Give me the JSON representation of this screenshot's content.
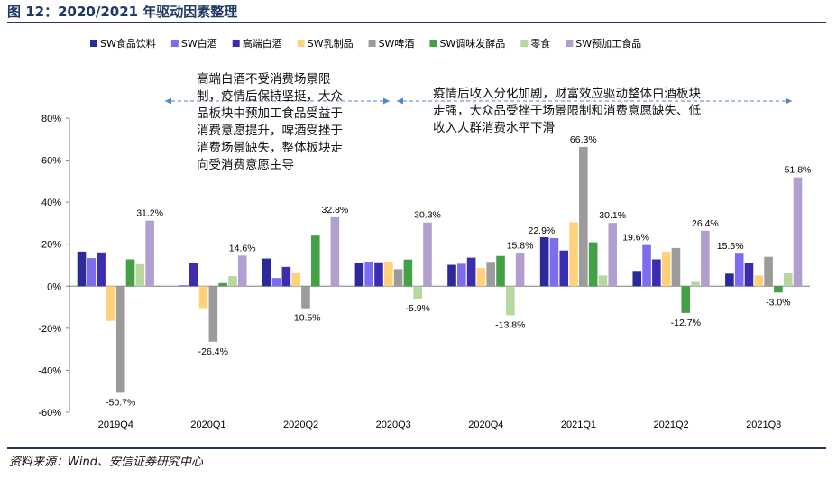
{
  "title": "图 12：2020/2021 年驱动因素整理",
  "source": "资料来源：Wind、安信证券研究中心",
  "annotations": [
    {
      "text": "高端白酒不受消费场景限制，疫情后保持坚挺，大众品板块中预加工食品受益于消费意愿提升，啤酒受挫于消费场景缺失，整体板块走向受消费意愿主导",
      "lines": [
        "高端白酒不受消费场景限",
        "制，疫情后保持坚挺，大众",
        "品板块中预加工食品受益于",
        "消费意愿提升，啤酒受挫于",
        "消费场景缺失，整体板块走",
        "向受消费意愿主导"
      ]
    },
    {
      "text": "疫情后收入分化加剧，财富效应驱动整体白酒板块走强，大众品受挫于场景限制和消费意愿缺失、低收入人群消费水平下滑",
      "lines": [
        "疫情后收入分化加剧，财富效应驱动整体白酒板块",
        "走强，大众品受挫于场景限制和消费意愿缺失、低",
        "收入人群消费水平下滑"
      ]
    }
  ],
  "chart_data": {
    "type": "bar",
    "categories": [
      "2019Q4",
      "2020Q1",
      "2020Q2",
      "2020Q3",
      "2020Q4",
      "2021Q1",
      "2021Q2",
      "2021Q3"
    ],
    "ylim": [
      -60,
      80
    ],
    "yticks": [
      -60,
      -40,
      -20,
      0,
      20,
      40,
      60,
      80
    ],
    "ytick_labels": [
      "-60%",
      "-40%",
      "-20%",
      "0%",
      "20%",
      "40%",
      "60%",
      "80%"
    ],
    "legend_position": "top",
    "grid": false,
    "series": [
      {
        "name": "SW食品饮料",
        "color": "#2a2a9a",
        "values": [
          16.5,
          0,
          13.2,
          11.3,
          10.2,
          23.3,
          7.3,
          6.0
        ]
      },
      {
        "name": "SW白酒",
        "color": "#7b6cf0",
        "values": [
          13.4,
          0.5,
          3.9,
          11.7,
          10.7,
          22.9,
          19.6,
          15.5
        ]
      },
      {
        "name": "高端白酒",
        "color": "#3a2db0",
        "values": [
          16.1,
          10.9,
          9.2,
          11.4,
          13.6,
          17.0,
          12.8,
          11.2
        ]
      },
      {
        "name": "SW乳制品",
        "color": "#ffd27a",
        "values": [
          -16.5,
          -10.4,
          6.2,
          11.7,
          8.7,
          30.4,
          16.4,
          5.1
        ]
      },
      {
        "name": "SW啤酒",
        "color": "#9b9b9b",
        "values": [
          -50.7,
          -26.4,
          -10.5,
          8.1,
          11.6,
          66.3,
          18.2,
          14.0
        ]
      },
      {
        "name": "SW调味发酵品",
        "color": "#44a046",
        "values": [
          12.8,
          1.5,
          24.1,
          12.7,
          14.4,
          20.9,
          -12.7,
          -3.0
        ]
      },
      {
        "name": "零食",
        "color": "#b6d89c",
        "values": [
          10.5,
          4.8,
          0,
          -5.9,
          -13.8,
          5.1,
          2.1,
          6.1
        ]
      },
      {
        "name": "SW预加工食品",
        "color": "#b29fcf",
        "values": [
          31.2,
          14.6,
          32.8,
          30.3,
          15.8,
          30.1,
          26.4,
          51.8
        ]
      }
    ],
    "data_labels": [
      {
        "series": "SW预加工食品",
        "category": "2019Q4",
        "value": 31.2,
        "text": "31.2%"
      },
      {
        "series": "SW啤酒",
        "category": "2019Q4",
        "value": -50.7,
        "text": "-50.7%"
      },
      {
        "series": "SW预加工食品",
        "category": "2020Q1",
        "value": 14.6,
        "text": "14.6%"
      },
      {
        "series": "SW啤酒",
        "category": "2020Q1",
        "value": -26.4,
        "text": "-26.4%"
      },
      {
        "series": "SW预加工食品",
        "category": "2020Q2",
        "value": 32.8,
        "text": "32.8%"
      },
      {
        "series": "SW啤酒",
        "category": "2020Q2",
        "value": -10.5,
        "text": "-10.5%"
      },
      {
        "series": "SW预加工食品",
        "category": "2020Q3",
        "value": 30.3,
        "text": "30.3%"
      },
      {
        "series": "零食",
        "category": "2020Q3",
        "value": -5.9,
        "text": "-5.9%"
      },
      {
        "series": "SW预加工食品",
        "category": "2020Q4",
        "value": 15.8,
        "text": "15.8%"
      },
      {
        "series": "零食",
        "category": "2020Q4",
        "value": -13.8,
        "text": "-13.8%"
      },
      {
        "series": "SW白酒",
        "category": "2021Q1",
        "value": 22.9,
        "text": "22.9%"
      },
      {
        "series": "SW啤酒",
        "category": "2021Q1",
        "value": 66.3,
        "text": "66.3%"
      },
      {
        "series": "SW预加工食品",
        "category": "2021Q1",
        "value": 30.1,
        "text": "30.1%"
      },
      {
        "series": "SW白酒",
        "category": "2021Q2",
        "value": 19.6,
        "text": "19.6%"
      },
      {
        "series": "SW预加工食品",
        "category": "2021Q2",
        "value": 26.4,
        "text": "26.4%"
      },
      {
        "series": "SW调味发酵品",
        "category": "2021Q2",
        "value": -12.7,
        "text": "-12.7%"
      },
      {
        "series": "SW白酒",
        "category": "2021Q3",
        "value": 15.5,
        "text": "15.5%"
      },
      {
        "series": "SW预加工食品",
        "category": "2021Q3",
        "value": 51.8,
        "text": "51.8%"
      },
      {
        "series": "SW调味发酵品",
        "category": "2021Q3",
        "value": -3.0,
        "text": "-3.0%"
      }
    ]
  }
}
